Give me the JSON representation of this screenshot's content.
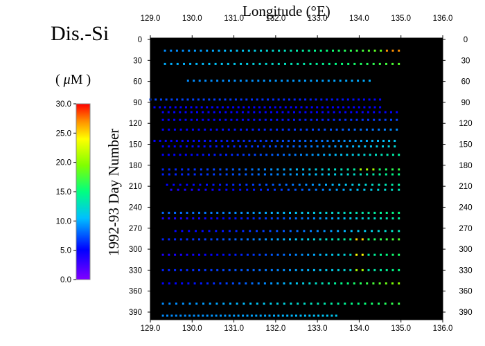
{
  "title": "Dis.-Si",
  "colorbar": {
    "units": "( μM )",
    "units_mu": "μ",
    "units_rest": "M )",
    "units_open": "( ",
    "ticks": [
      "0.0",
      "5.0",
      "10.0",
      "15.0",
      "20.0",
      "25.0",
      "30.0"
    ],
    "min": 0,
    "max": 30
  },
  "chart_data": {
    "type": "scatter",
    "title": "Dis.-Si",
    "xlabel": "Longitude (°E)",
    "ylabel": "1992-93  Day  Number",
    "xlim": [
      129.0,
      136.0
    ],
    "ylim": [
      0,
      400
    ],
    "y_inverted": true,
    "background": "#000000",
    "x_ticks": [
      "129.0",
      "130.0",
      "131.0",
      "132.0",
      "133.0",
      "134.0",
      "135.0",
      "136.0"
    ],
    "y_ticks": [
      "0",
      "30",
      "60",
      "90",
      "120",
      "150",
      "180",
      "210",
      "240",
      "270",
      "300",
      "330",
      "360",
      "390"
    ],
    "colormap": "rainbow (violet=0 → red=30 μM)",
    "transects": [
      {
        "day": 16,
        "x0": 129.35,
        "x1": 134.95,
        "n": 40,
        "v0": 9,
        "v1": 20,
        "peak_at": 134.8,
        "peak": 27
      },
      {
        "day": 35,
        "x0": 129.35,
        "x1": 134.95,
        "n": 38,
        "v0": 10,
        "v1": 18
      },
      {
        "day": 59,
        "x0": 129.9,
        "x1": 134.25,
        "n": 32,
        "v0": 9,
        "v1": 10
      },
      {
        "day": 86,
        "x0": 129.0,
        "x1": 134.5,
        "n": 44,
        "v0": 7,
        "v1": 5
      },
      {
        "day": 97,
        "x0": 129.1,
        "x1": 134.5,
        "n": 44,
        "v0": 5,
        "v1": 5
      },
      {
        "day": 104,
        "x0": 129.3,
        "x1": 134.9,
        "n": 42,
        "v0": 5,
        "v1": 5
      },
      {
        "day": 115,
        "x0": 129.3,
        "x1": 134.9,
        "n": 42,
        "v0": 5,
        "v1": 7
      },
      {
        "day": 129,
        "x0": 129.3,
        "x1": 134.9,
        "n": 40,
        "v0": 5,
        "v1": 9
      },
      {
        "day": 145,
        "x0": 129.1,
        "x1": 134.85,
        "n": 44,
        "v0": 5,
        "v1": 11
      },
      {
        "day": 153,
        "x0": 129.3,
        "x1": 134.85,
        "n": 40,
        "v0": 5,
        "v1": 12
      },
      {
        "day": 165,
        "x0": 129.3,
        "x1": 134.95,
        "n": 42,
        "v0": 5,
        "v1": 14
      },
      {
        "day": 186,
        "x0": 129.3,
        "x1": 134.95,
        "n": 38,
        "v0": 6,
        "v1": 17,
        "peak_at": 134.2,
        "peak": 21
      },
      {
        "day": 193,
        "x0": 129.3,
        "x1": 134.95,
        "n": 38,
        "v0": 6,
        "v1": 15
      },
      {
        "day": 208,
        "x0": 129.4,
        "x1": 134.95,
        "n": 36,
        "v0": 5,
        "v1": 14
      },
      {
        "day": 215,
        "x0": 129.5,
        "x1": 134.95,
        "n": 34,
        "v0": 4,
        "v1": 13
      },
      {
        "day": 248,
        "x0": 129.3,
        "x1": 134.95,
        "n": 40,
        "v0": 8,
        "v1": 15
      },
      {
        "day": 256,
        "x0": 129.3,
        "x1": 134.95,
        "n": 40,
        "v0": 4,
        "v1": 14
      },
      {
        "day": 274,
        "x0": 129.6,
        "x1": 134.95,
        "n": 34,
        "v0": 5,
        "v1": 13
      },
      {
        "day": 286,
        "x0": 129.3,
        "x1": 134.95,
        "n": 40,
        "v0": 6,
        "v1": 18,
        "peak_at": 134.0,
        "peak": 25
      },
      {
        "day": 308,
        "x0": 129.3,
        "x1": 134.95,
        "n": 40,
        "v0": 4,
        "v1": 16,
        "peak_at": 134.0,
        "peak": 24
      },
      {
        "day": 330,
        "x0": 129.3,
        "x1": 134.95,
        "n": 40,
        "v0": 6,
        "v1": 15,
        "peak_at": 134.0,
        "peak": 21
      },
      {
        "day": 349,
        "x0": 129.3,
        "x1": 134.95,
        "n": 38,
        "v0": 5,
        "v1": 20
      },
      {
        "day": 378,
        "x0": 129.3,
        "x1": 134.95,
        "n": 36,
        "v0": 9,
        "v1": 17
      },
      {
        "day": 395,
        "x0": 129.3,
        "x1": 133.45,
        "n": 40,
        "v0": 9,
        "v1": 11
      }
    ]
  }
}
